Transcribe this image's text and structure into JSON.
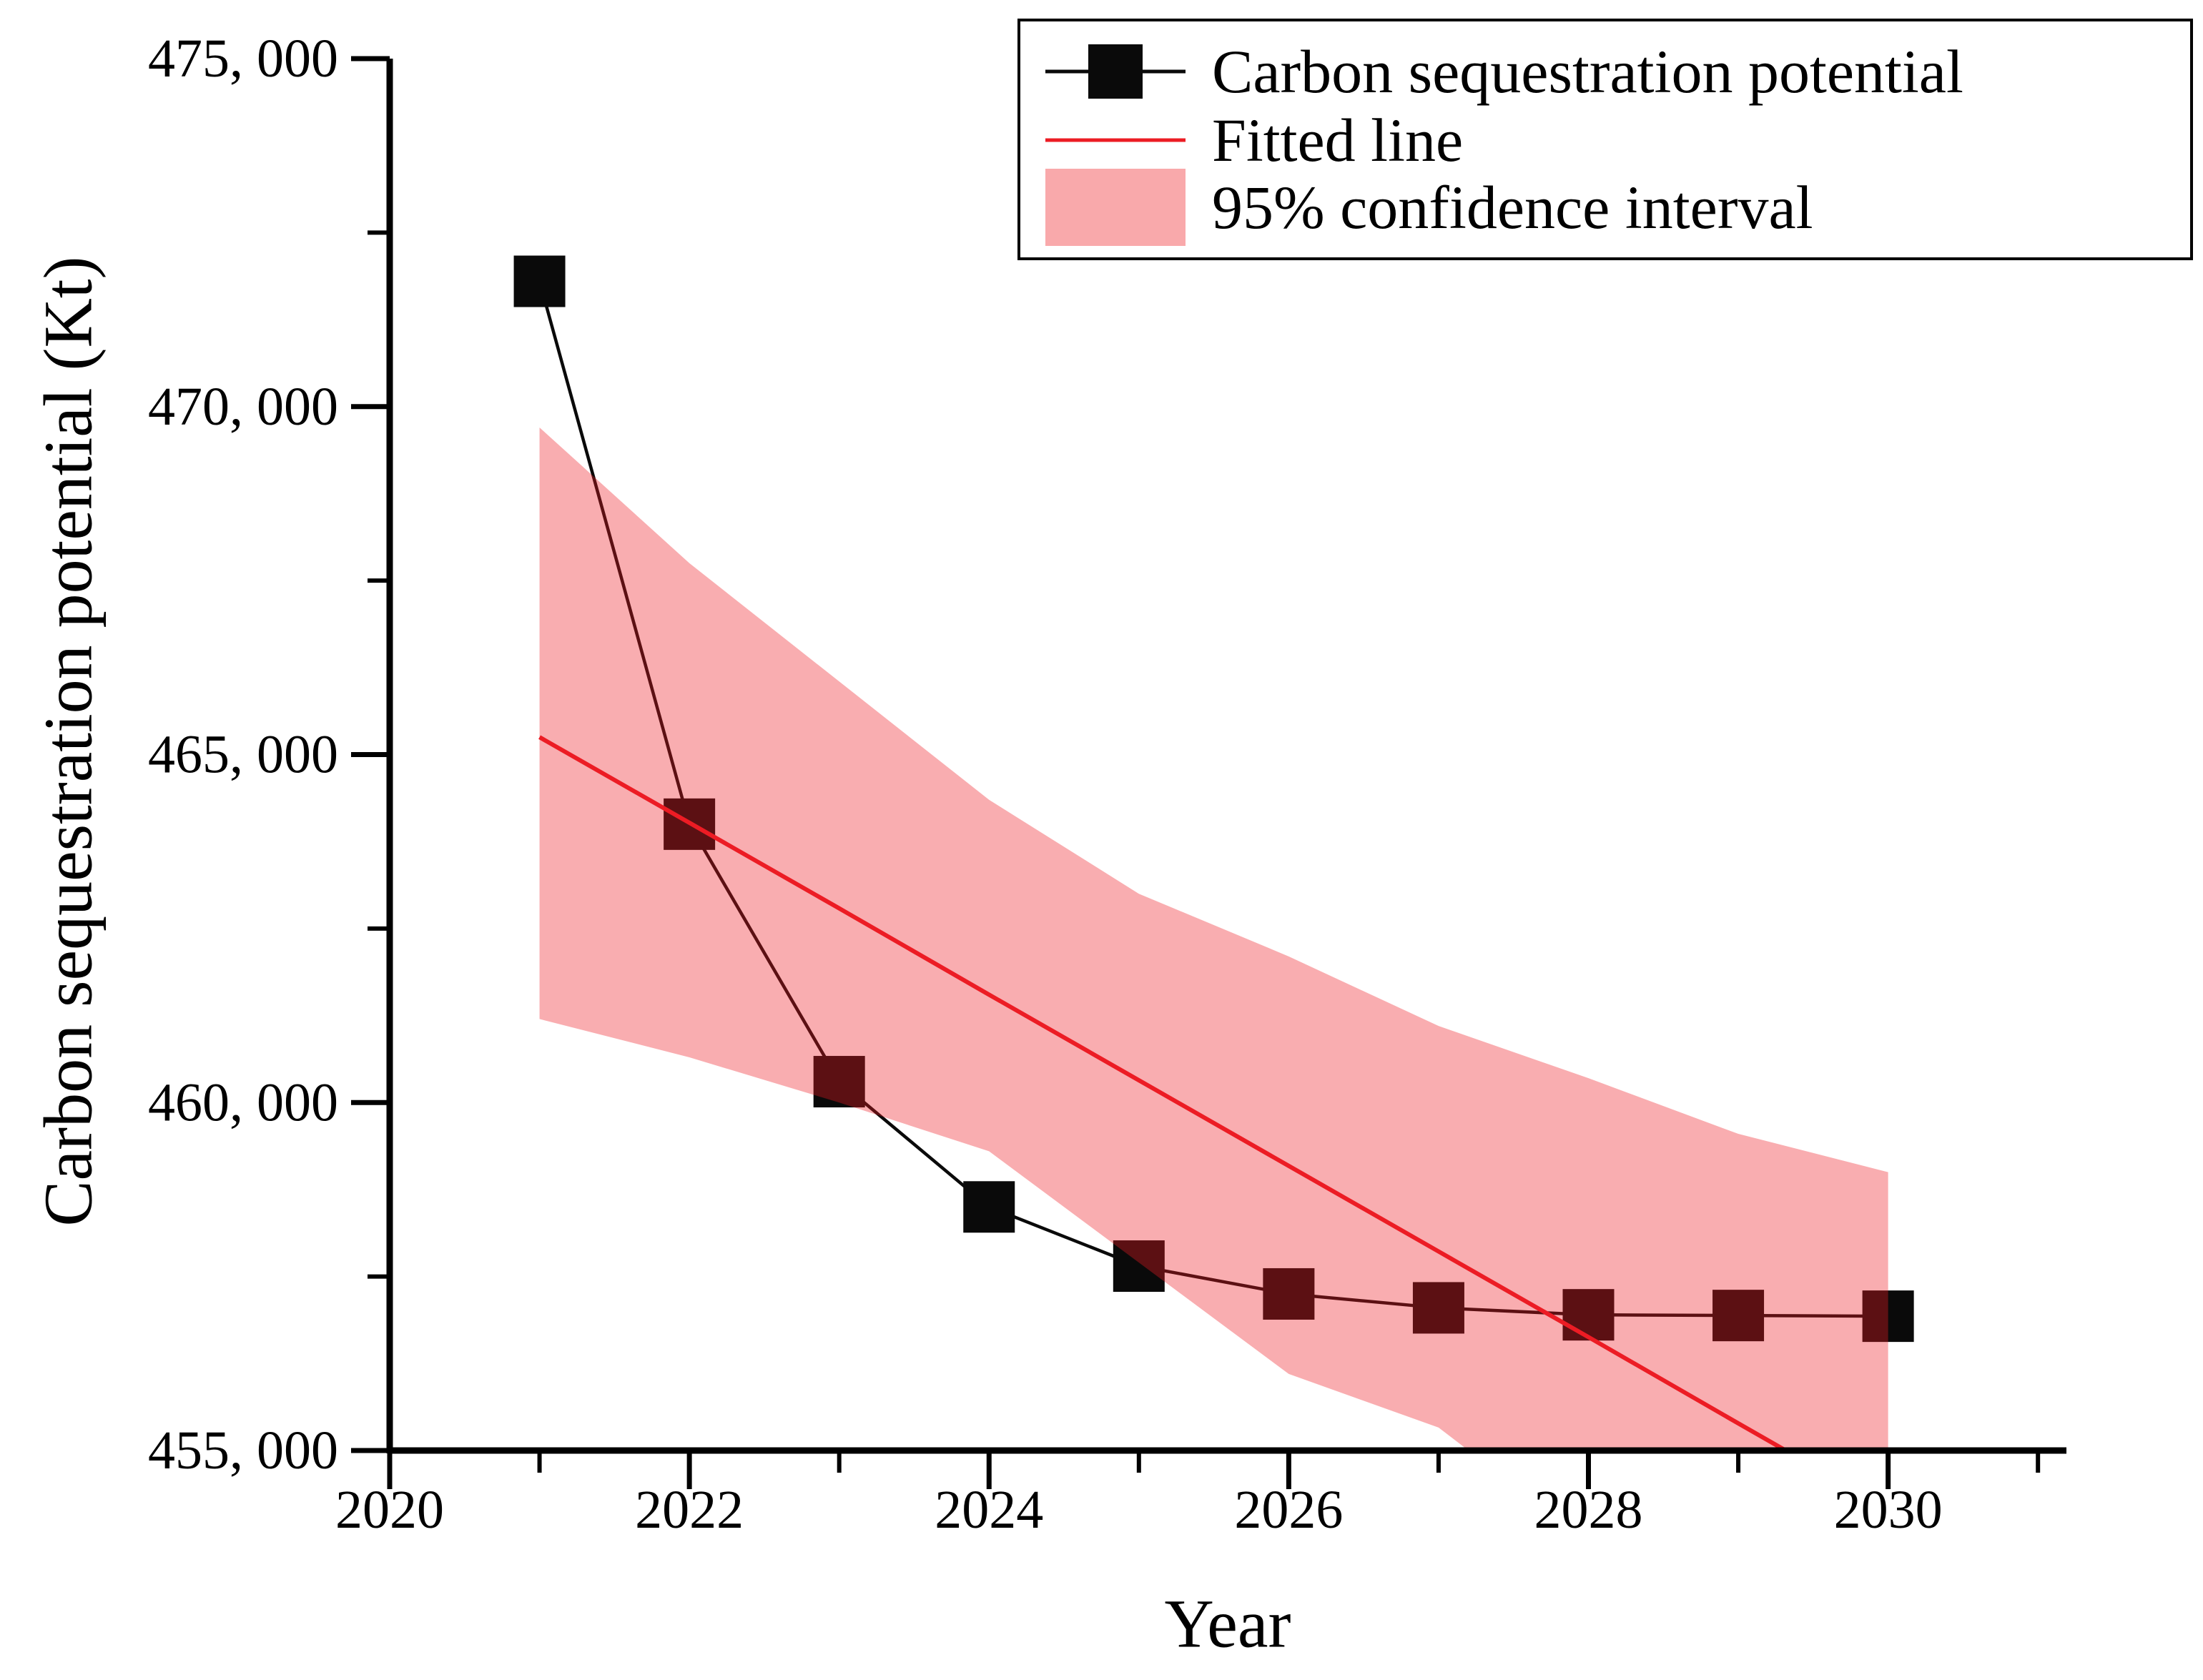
{
  "figure": {
    "background": "#ffffff",
    "x_axis_title": "Year",
    "y_axis_title": "Carbon sequestration potential (Kt)"
  },
  "legend": {
    "items": [
      {
        "label": "Carbon sequestration potential",
        "symbol": "black-line-with-square-marker"
      },
      {
        "label": "Fitted line",
        "symbol": "red-line"
      },
      {
        "label": "95% confidence interval",
        "symbol": "pink-filled-rectangle"
      }
    ]
  },
  "chart_data": {
    "type": "line",
    "title": "",
    "xlabel": "Year",
    "ylabel": "Carbon sequestration potential (Kt)",
    "xlim": [
      2020,
      2031.19
    ],
    "ylim": [
      455000,
      475000
    ],
    "grid": false,
    "legend_position": "top-right",
    "x": [
      2021,
      2022,
      2023,
      2024,
      2025,
      2026,
      2027,
      2028,
      2029,
      2030
    ],
    "series": [
      {
        "name": "Carbon sequestration potential",
        "type": "line+marker",
        "color": "#0a0a0a",
        "marker": "square",
        "values": [
          471800,
          464000,
          460300,
          458500,
          457650,
          457250,
          457050,
          456950,
          456940,
          456930
        ]
      },
      {
        "name": "Fitted line",
        "type": "line",
        "color": "#ec1c24",
        "values": [
          465250,
          464020,
          462790,
          461550,
          460320,
          459090,
          457860,
          456630,
          455390,
          454160
        ],
        "clipped_at_ymin": true
      }
    ],
    "band": {
      "name": "95% confidence interval",
      "fill": "#ed1c24",
      "opacity": 0.36,
      "legend_color": "#f9a9ab",
      "x": [
        2021,
        2022,
        2023,
        2024,
        2025,
        2026,
        2027,
        2027.2,
        2028,
        2029,
        2030
      ],
      "upper": [
        469700,
        467750,
        466050,
        464350,
        463000,
        462100,
        461100,
        460950,
        460350,
        459550,
        459000
      ],
      "lower": [
        461200,
        460650,
        460000,
        459300,
        457700,
        456100,
        455330,
        455000,
        455000,
        455000,
        455000
      ]
    },
    "x_axis": {
      "major": [
        {
          "value": 2020,
          "label": "2020"
        },
        {
          "value": 2022,
          "label": "2022"
        },
        {
          "value": 2024,
          "label": "2024"
        },
        {
          "value": 2026,
          "label": "2026"
        },
        {
          "value": 2028,
          "label": "2028"
        },
        {
          "value": 2030,
          "label": "2030"
        }
      ],
      "minor": [
        2021,
        2023,
        2025,
        2027,
        2029,
        2031
      ]
    },
    "y_axis": {
      "major": [
        {
          "value": 455000,
          "label": "455, 000"
        },
        {
          "value": 460000,
          "label": "460, 000"
        },
        {
          "value": 465000,
          "label": "465, 000"
        },
        {
          "value": 470000,
          "label": "470, 000"
        },
        {
          "value": 475000,
          "label": "475, 000"
        }
      ],
      "minor": [
        457500,
        462500,
        467500,
        472500
      ]
    },
    "axis_color": "#000000"
  }
}
